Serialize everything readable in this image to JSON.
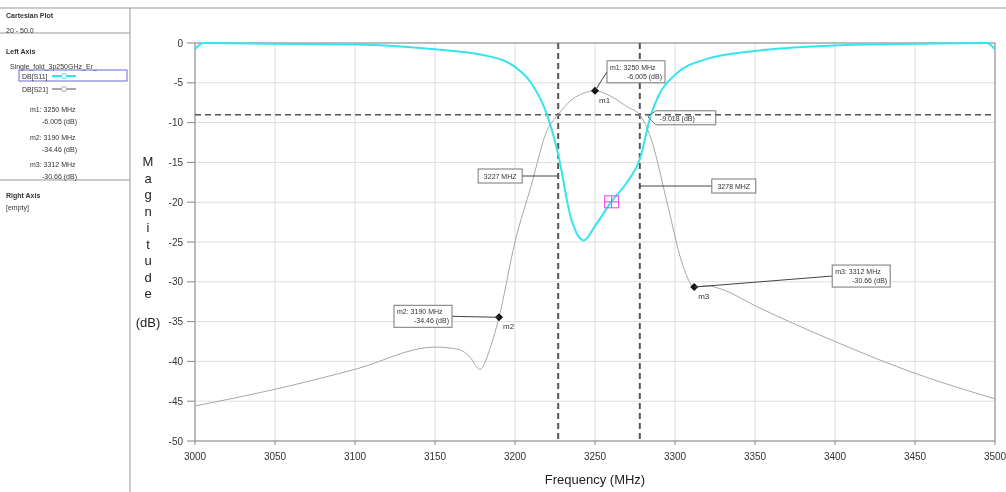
{
  "chart_data": {
    "type": "line",
    "xlabel": "Frequency (MHz)",
    "ylabel": "Magnitude (dB)",
    "xlim": [
      3000,
      3500
    ],
    "xticks": [
      3000,
      3050,
      3100,
      3150,
      3200,
      3250,
      3300,
      3350,
      3400,
      3450,
      3500
    ],
    "ylim": [
      -50,
      0
    ],
    "yticks": [
      -50,
      -45,
      -40,
      -35,
      -30,
      -25,
      -20,
      -15,
      -10,
      -5,
      0
    ],
    "grid": true,
    "legend": "left",
    "marker": "none",
    "line_style": "solid",
    "series": [
      {
        "name": "DB[S11]",
        "color": "#33e6ee",
        "x": [
          3000,
          3005,
          3050,
          3100,
          3150,
          3180,
          3200,
          3210,
          3220,
          3227,
          3235,
          3243,
          3250,
          3260,
          3270,
          3278,
          3285,
          3290,
          3300,
          3320,
          3350,
          3400,
          3450,
          3495,
          3500
        ],
        "values": [
          -0.8,
          0,
          -0.1,
          -0.2,
          -0.8,
          -1.5,
          -3,
          -5,
          -9,
          -14,
          -22,
          -24.8,
          -23,
          -20,
          -17.5,
          -14.6,
          -9,
          -6.5,
          -4,
          -2,
          -1,
          -0.3,
          -0.1,
          0,
          -0.8
        ]
      },
      {
        "name": "DB[S21]",
        "color": "#a8a8a8",
        "x": [
          3000,
          3050,
          3100,
          3150,
          3165,
          3172,
          3178,
          3185,
          3190,
          3200,
          3210,
          3220,
          3227,
          3235,
          3243,
          3250,
          3260,
          3270,
          3278,
          3285,
          3295,
          3305,
          3312,
          3320,
          3330,
          3350,
          3400,
          3450,
          3500
        ],
        "values": [
          -45.6,
          -43.5,
          -41,
          -38.2,
          -38.5,
          -39.5,
          -41,
          -38,
          -34.46,
          -25,
          -18,
          -11,
          -9,
          -7.2,
          -6.3,
          -6.005,
          -6.7,
          -8,
          -9.02,
          -12,
          -20,
          -28,
          -30.66,
          -30.5,
          -31,
          -33,
          -37.5,
          -41.5,
          -44.7
        ]
      }
    ],
    "ref_lines": [
      {
        "axis": "y",
        "value": -9.018,
        "label": "-9.018 (dB)",
        "color": "#555555",
        "line_style": "dashed"
      },
      {
        "axis": "x",
        "value": 3227,
        "label": "3227 MHZ",
        "color": "#555555",
        "line_style": "dashed"
      },
      {
        "axis": "x",
        "value": 3278,
        "label": "3278 MHZ",
        "color": "#555555",
        "line_style": "dashed"
      }
    ],
    "annotations": [
      "Cartesian Plot",
      "20 - 50.0",
      "Left Axis",
      "Single_fold_3p250GHz_Er_",
      "m1:  3250 MHz",
      "-6.005  (dB)",
      "m2:  3190 MHz",
      "-34.46  (dB)",
      "m3:  3312 MHz",
      "-30.66  (dB)",
      "Right Axis",
      "[empty]",
      {
        "text": "m1: 3250 MHz\n-6.005  (dB)",
        "x": 3250,
        "y": -6.005
      },
      {
        "text": "m2: 3190 MHz\n-34.46  (dB)",
        "x": 3190,
        "y": -34.46
      },
      {
        "text": "m3: 3312 MHz\n-30.66  (dB)",
        "x": 3312,
        "y": -30.66
      },
      {
        "text": "m1",
        "x": 3250,
        "y": -6.005
      },
      {
        "text": "m2",
        "x": 3190,
        "y": -34.46
      },
      {
        "text": "m3",
        "x": 3312,
        "y": -30.66
      }
    ]
  }
}
